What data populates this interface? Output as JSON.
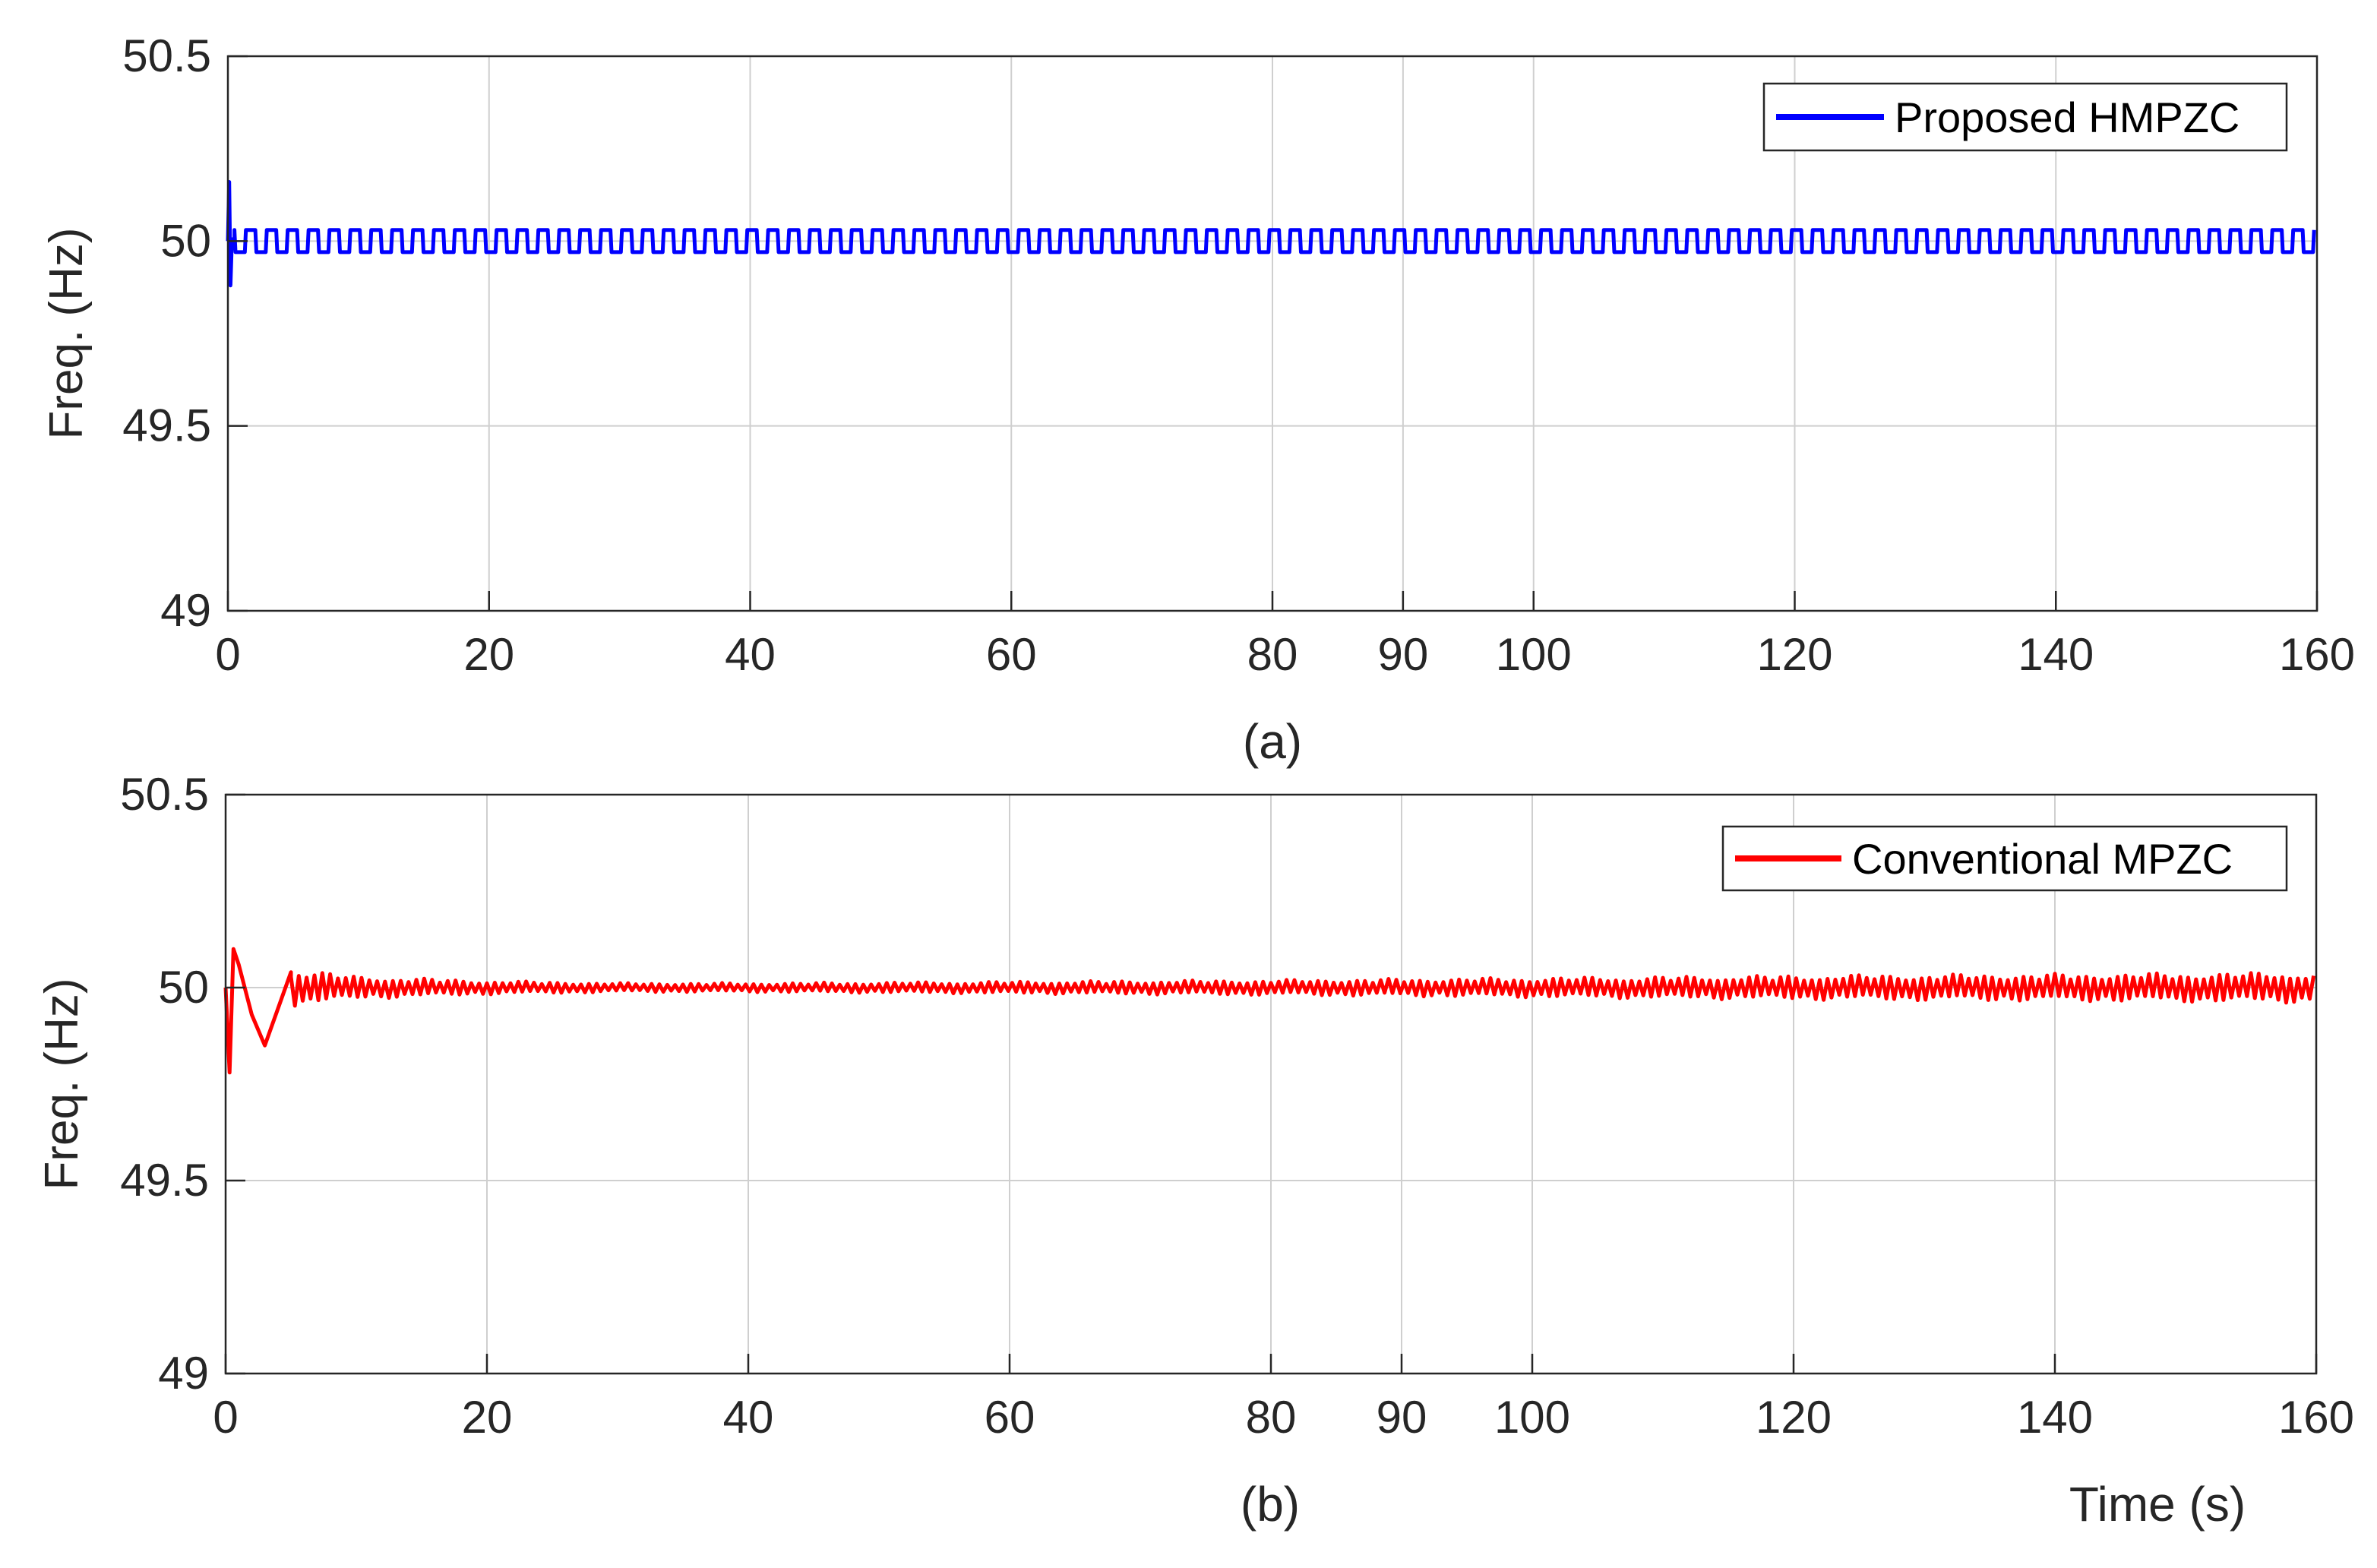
{
  "chart_data": [
    {
      "type": "line",
      "panel_caption": "(a)",
      "xlabel": "",
      "ylabel": "Freq. (Hz)",
      "xlim": [
        0,
        160
      ],
      "ylim": [
        49,
        50.5
      ],
      "xticks": [
        0,
        20,
        40,
        60,
        80,
        90,
        100,
        120,
        140,
        160
      ],
      "yticks": [
        49,
        49.5,
        50,
        50.5
      ],
      "ytick_labels": [
        "49",
        "49.5",
        "50",
        "50.5"
      ],
      "grid": true,
      "legend_position": "top-right",
      "series": [
        {
          "name": "Proposed HMPZC",
          "color": "#0000ff",
          "x": [
            0,
            0.1,
            0.2,
            0.3,
            0.5,
            1,
            2,
            4,
            8,
            20,
            40,
            60,
            80,
            100,
            120,
            140,
            160
          ],
          "y": [
            50,
            50.16,
            49.88,
            50.0,
            50.01,
            50.0,
            50.0,
            50.0,
            50.0,
            50.0,
            50.0,
            50.0,
            50.0,
            50.0,
            50.0,
            50.0,
            50.0
          ],
          "oscillation_band": [
            49.97,
            50.03
          ],
          "oscillation_period": 1.6
        }
      ]
    },
    {
      "type": "line",
      "panel_caption": "(b)",
      "xlabel": "Time (s)",
      "ylabel": "Freq. (Hz)",
      "xlim": [
        0,
        160
      ],
      "ylim": [
        49,
        50.5
      ],
      "xticks": [
        0,
        20,
        40,
        60,
        80,
        90,
        100,
        120,
        140,
        160
      ],
      "yticks": [
        49,
        49.5,
        50,
        50.5
      ],
      "ytick_labels": [
        "49",
        "49.5",
        "50",
        "50.5"
      ],
      "grid": true,
      "legend_position": "top-right",
      "series": [
        {
          "name": "Conventional MPZC",
          "color": "#ff0000",
          "x": [
            0,
            0.3,
            0.6,
            1,
            2,
            3,
            5,
            10,
            20,
            30,
            40,
            60,
            80,
            100,
            120,
            140,
            160
          ],
          "y": [
            50,
            49.78,
            50.1,
            50.06,
            49.93,
            49.85,
            50.04,
            50.02,
            50.01,
            50.0,
            50.0,
            50.0,
            50.0,
            50.0,
            50.0,
            50.0,
            50.0
          ],
          "envelope": {
            "t": [
              0,
              1,
              3,
              5,
              10,
              20,
              30,
              40,
              60,
              80,
              100,
              120,
              140,
              160
            ],
            "amplitude": [
              0.2,
              0.16,
              0.09,
              0.05,
              0.03,
              0.018,
              0.012,
              0.012,
              0.016,
              0.02,
              0.026,
              0.032,
              0.036,
              0.04
            ]
          },
          "oscillation_period": 0.6
        }
      ]
    }
  ]
}
